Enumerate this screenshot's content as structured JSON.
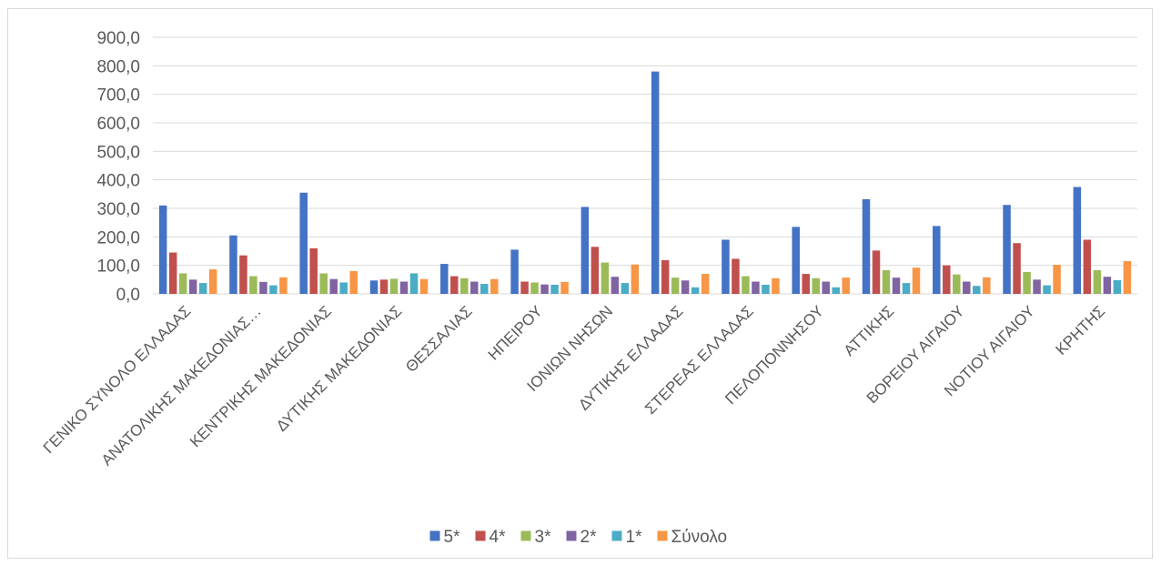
{
  "chart_data": {
    "type": "bar",
    "categories": [
      "ΓΕΝΙΚΟ ΣΥΝΟΛΟ ΕΛΛΑΔΑΣ",
      "ΑΝΑΤΟΛΙΚΗΣ ΜΑΚΕΔΟΝΙΑΣ…",
      "ΚΕΝΤΡΙΚΗΣ ΜΑΚΕΔΟΝΙΑΣ",
      "ΔΥΤΙΚΗΣ ΜΑΚΕΔΟΝΙΑΣ",
      "ΘΕΣΣΑΛΙΑΣ",
      "ΗΠΕΙΡΟΥ",
      "ΙΟΝΙΩΝ ΝΗΣΩΝ",
      "ΔΥΤΙΚΗΣ ΕΛΛΑΔΑΣ",
      "ΣΤΕΡΕΑΣ ΕΛΛΑΔΑΣ",
      "ΠΕΛΟΠΟΝΝΗΣΟΥ",
      "ΑΤΤΙΚΗΣ",
      "ΒΟΡΕΙΟΥ ΑΙΓΑΙΟΥ",
      "ΝΟΤΙΟΥ ΑΙΓΑΙΟΥ",
      "ΚΡΗΤΗΣ"
    ],
    "series": [
      {
        "name": "5*",
        "color": "#4472c4",
        "values": [
          310,
          205,
          355,
          47,
          105,
          155,
          305,
          780,
          190,
          235,
          332,
          238,
          312,
          375
        ]
      },
      {
        "name": "4*",
        "color": "#c0504d",
        "values": [
          145,
          135,
          160,
          50,
          62,
          43,
          165,
          118,
          123,
          70,
          152,
          100,
          178,
          190
        ]
      },
      {
        "name": "3*",
        "color": "#9bbb59",
        "values": [
          72,
          62,
          72,
          53,
          55,
          40,
          110,
          57,
          62,
          55,
          83,
          68,
          77,
          83
        ]
      },
      {
        "name": "2*",
        "color": "#8064a2",
        "values": [
          50,
          42,
          52,
          43,
          43,
          33,
          60,
          47,
          43,
          43,
          57,
          43,
          50,
          60
        ]
      },
      {
        "name": "1*",
        "color": "#4bacc6",
        "values": [
          38,
          30,
          40,
          72,
          35,
          32,
          38,
          23,
          32,
          23,
          38,
          28,
          30,
          48
        ]
      },
      {
        "name": "Σύνολο",
        "color": "#f79646",
        "values": [
          86,
          58,
          80,
          52,
          52,
          42,
          103,
          70,
          55,
          57,
          92,
          58,
          102,
          115
        ]
      }
    ],
    "y_tick_labels": [
      "0,0",
      "100,0",
      "200,0",
      "300,0",
      "400,0",
      "500,0",
      "600,0",
      "700,0",
      "800,0",
      "900,0"
    ],
    "ylim": [
      0,
      900
    ],
    "y_step": 100,
    "grid": true,
    "legend_position": "bottom",
    "title": "",
    "xlabel": "",
    "ylabel": ""
  }
}
